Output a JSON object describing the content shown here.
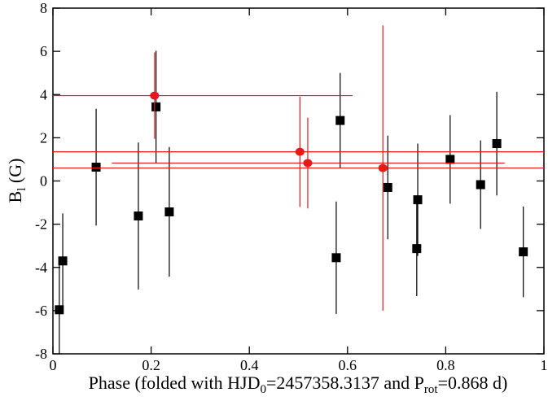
{
  "chart_data": {
    "type": "errorbar_scatter",
    "x_label": {
      "pre": "Phase (folded with HJD",
      "sub1": "0",
      "mid": "=2457358.3137 and P",
      "sub2": "rot",
      "post": "=0.868 d)"
    },
    "y_label": {
      "main": "B",
      "sub": "l",
      "unit": " (G)"
    },
    "xlim": [
      0,
      1
    ],
    "ylim": [
      -8,
      8
    ],
    "xticks": [
      0,
      0.2,
      0.4,
      0.6,
      0.8,
      1
    ],
    "yticks": [
      -8,
      -6,
      -4,
      -2,
      0,
      2,
      4,
      6,
      8
    ],
    "series": [
      {
        "color": "#000000",
        "marker": "square",
        "x": [
          0.013,
          0.02,
          0.088,
          0.174,
          0.21,
          0.237,
          0.577,
          0.585,
          0.682,
          0.741,
          0.743,
          0.809,
          0.871,
          0.904,
          0.958
        ],
        "values": [
          -5.96,
          -3.7,
          0.64,
          -1.62,
          3.43,
          -1.43,
          -3.55,
          2.8,
          -0.3,
          -3.13,
          -0.87,
          1.0,
          -0.17,
          1.73,
          -3.28
        ],
        "errors": [
          2.1,
          2.2,
          2.7,
          3.4,
          2.6,
          3.0,
          2.6,
          2.2,
          2.4,
          2.2,
          2.6,
          2.05,
          2.05,
          2.4,
          2.1
        ]
      },
      {
        "color": "#e8171b",
        "marker": "circle",
        "x": [
          0.207,
          0.503,
          0.519,
          0.672
        ],
        "values": [
          3.95,
          1.35,
          0.83,
          0.6
        ],
        "errors": [
          2.0,
          2.55,
          2.1,
          6.6
        ],
        "x_low": [
          0,
          0,
          0.12,
          0
        ],
        "x_high": [
          0.61,
          1,
          0.92,
          1
        ]
      }
    ]
  }
}
